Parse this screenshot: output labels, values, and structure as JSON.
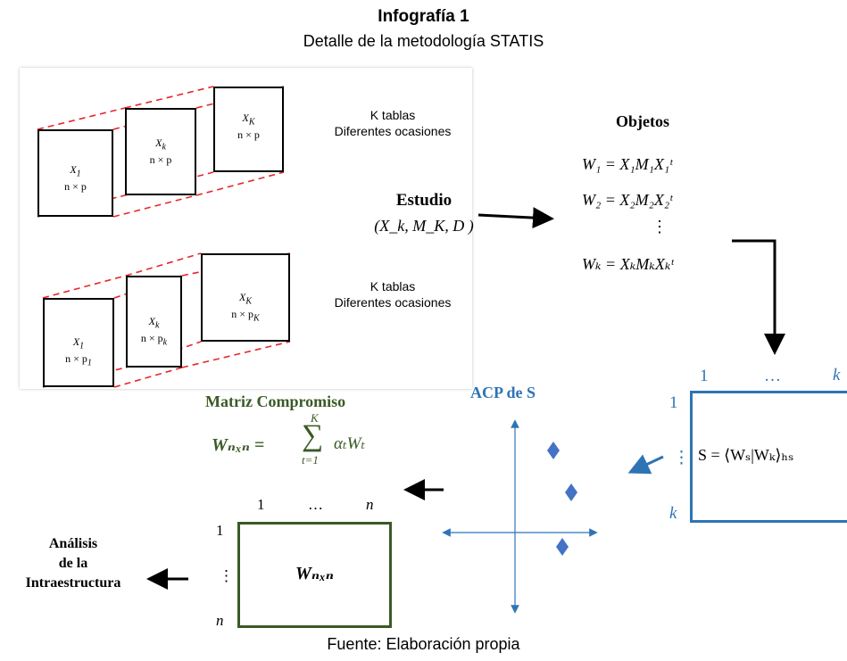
{
  "header": {
    "title": "Infografía 1",
    "subtitle": "Detalle de la metodología STATIS"
  },
  "top_panel": {
    "tables": [
      {
        "name": "X",
        "sub": "1",
        "dims": "n × p"
      },
      {
        "name": "X",
        "sub": "k",
        "dims": "n × p"
      },
      {
        "name": "X",
        "sub": "K",
        "dims": "n × p"
      }
    ],
    "caption_line1": "K tablas",
    "caption_line2": "Diferentes ocasiones"
  },
  "bottom_panel": {
    "tables": [
      {
        "name": "X",
        "sub": "1",
        "dims": "n × p",
        "dsub": "1"
      },
      {
        "name": "X",
        "sub": "k",
        "dims": "n × p",
        "dsub": "k"
      },
      {
        "name": "X",
        "sub": "K",
        "dims": "n × p",
        "dsub": "K"
      }
    ],
    "caption_line1": "K tablas",
    "caption_line2": "Diferentes ocasiones"
  },
  "estudio": {
    "label": "Estudio",
    "formula": "(X_k, M_K, D )"
  },
  "objetos": {
    "label": "Objetos",
    "eq1": "W₁ = X₁M₁X₁ᵗ",
    "eq2": "W₂ = X₂M₂X₂ᵗ",
    "dots": "⋮",
    "eq3": "Wₖ = XₖMₖXₖᵗ"
  },
  "s_matrix": {
    "col_first": "1",
    "col_mid": "…",
    "col_last": "k",
    "row_first": "1",
    "row_mid": "⋮",
    "row_last": "k",
    "formula": "S = ⟨Wₛ|Wₖ⟩ₕₛ"
  },
  "acp": {
    "label": "ACP de S"
  },
  "compromiso": {
    "label": "Matriz Compromiso",
    "sum_top": "K",
    "sum_bottom": "t=1",
    "lhs": "Wₙₓₙ =",
    "rhs": "αₜWₜ",
    "col_first": "1",
    "col_mid": "…",
    "col_last": "n",
    "row_first": "1",
    "row_mid": "⋮",
    "row_last": "n",
    "cell": "Wₙₓₙ"
  },
  "analisis": {
    "line1": "Análisis",
    "line2": "de la",
    "line3": "Intraestructura"
  },
  "footer": {
    "source": "Fuente: Elaboración propia"
  },
  "colors": {
    "dashed": "#e8262a",
    "green": "#3a5a26",
    "blue": "#2e74b5",
    "diamond": "#4472c4"
  }
}
